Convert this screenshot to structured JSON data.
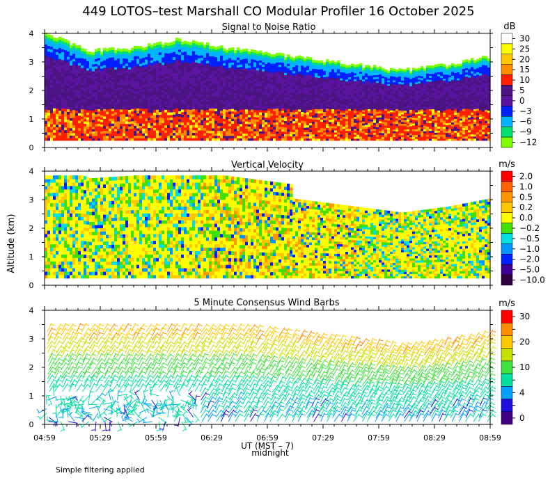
{
  "title": "449 LOTOS–test Marshall CO Modular Profiler 16 October 2025",
  "y_axis_label": "Altitude (km)",
  "x_axis_label": "UT (MST – 7)",
  "midnight_label": "midnight",
  "footnote": "Simple filtering applied",
  "x_ticks": [
    "04:59",
    "05:29",
    "05:59",
    "06:29",
    "06:59",
    "07:29",
    "07:59",
    "08:29",
    "08:59"
  ],
  "panels": [
    {
      "title": "Signal to Noise Ratio",
      "unit": "dB",
      "y_ticks": [
        "0",
        "1",
        "2",
        "3",
        "4"
      ],
      "colorbar": [
        {
          "label": "30",
          "color": "#ffffff"
        },
        {
          "label": "25",
          "color": "#ffff00"
        },
        {
          "label": "20",
          "color": "#ffc800"
        },
        {
          "label": "15",
          "color": "#ff8c00"
        },
        {
          "label": "10",
          "color": "#ff2000"
        },
        {
          "label": "5",
          "color": "#4b1482"
        },
        {
          "label": "0",
          "color": "#5a14a0"
        },
        {
          "label": "−3",
          "color": "#0020ff"
        },
        {
          "label": "−6",
          "color": "#00b4ff"
        },
        {
          "label": "−9",
          "color": "#00e070"
        },
        {
          "label": "−12",
          "color": "#80ff00"
        }
      ]
    },
    {
      "title": "Vertical Velocity",
      "unit": "m/s",
      "y_ticks": [
        "0",
        "1",
        "2",
        "3",
        "4"
      ],
      "colorbar": [
        {
          "label": "2.0",
          "color": "#ff0000"
        },
        {
          "label": "1.0",
          "color": "#ff6400"
        },
        {
          "label": "0.5",
          "color": "#ff9600"
        },
        {
          "label": "0.2",
          "color": "#ffc800"
        },
        {
          "label": "0.0",
          "color": "#ffff00"
        },
        {
          "label": "−0.2",
          "color": "#40e000"
        },
        {
          "label": "−0.5",
          "color": "#00e0e0"
        },
        {
          "label": "−1.0",
          "color": "#0096ff"
        },
        {
          "label": "−2.0",
          "color": "#0020ff"
        },
        {
          "label": "−5.0",
          "color": "#400096"
        },
        {
          "label": "−10.0",
          "color": "#300040"
        }
      ]
    },
    {
      "title": "5 Minute Consensus Wind Barbs",
      "unit": "m/s",
      "y_ticks": [
        "0",
        "1",
        "2",
        "3",
        "4"
      ],
      "colorbar": [
        {
          "label": "30",
          "color": "#ff0000"
        },
        {
          "label": "",
          "color": "#ff8c00"
        },
        {
          "label": "20",
          "color": "#ffc800"
        },
        {
          "label": "",
          "color": "#c8e000"
        },
        {
          "label": "10",
          "color": "#40e040"
        },
        {
          "label": "",
          "color": "#00e0a0"
        },
        {
          "label": "4",
          "color": "#00a0ff"
        },
        {
          "label": "",
          "color": "#2010e0"
        },
        {
          "label": "0",
          "color": "#400080"
        }
      ]
    }
  ],
  "chart_data": [
    {
      "type": "heatmap",
      "title": "Signal to Noise Ratio",
      "unit": "dB",
      "xlim": [
        "04:59",
        "08:59"
      ],
      "ylim": [
        0,
        4
      ],
      "top_of_data_km": [
        4.0,
        3.4,
        3.5,
        3.8,
        3.5,
        3.3,
        3.1,
        2.9,
        2.7,
        2.9,
        3.2
      ],
      "top_of_data_times": [
        "04:59",
        "05:23",
        "05:47",
        "06:11",
        "06:35",
        "06:59",
        "07:23",
        "07:47",
        "08:11",
        "08:35",
        "08:59"
      ],
      "levels": [
        -12,
        -9,
        -6,
        -3,
        0,
        5,
        10,
        15,
        20,
        25,
        30
      ]
    },
    {
      "type": "heatmap",
      "title": "Vertical Velocity",
      "unit": "m/s",
      "xlim": [
        "04:59",
        "08:59"
      ],
      "ylim": [
        0,
        4
      ],
      "levels": [
        -10.0,
        -5.0,
        -2.0,
        -1.0,
        -0.5,
        -0.2,
        0.0,
        0.2,
        0.5,
        1.0,
        2.0
      ]
    },
    {
      "type": "scatter",
      "title": "5 Minute Consensus Wind Barbs",
      "unit": "m/s",
      "xlim": [
        "04:59",
        "08:59"
      ],
      "ylim": [
        0,
        4
      ],
      "levels": [
        0,
        4,
        10,
        20,
        30
      ]
    }
  ]
}
